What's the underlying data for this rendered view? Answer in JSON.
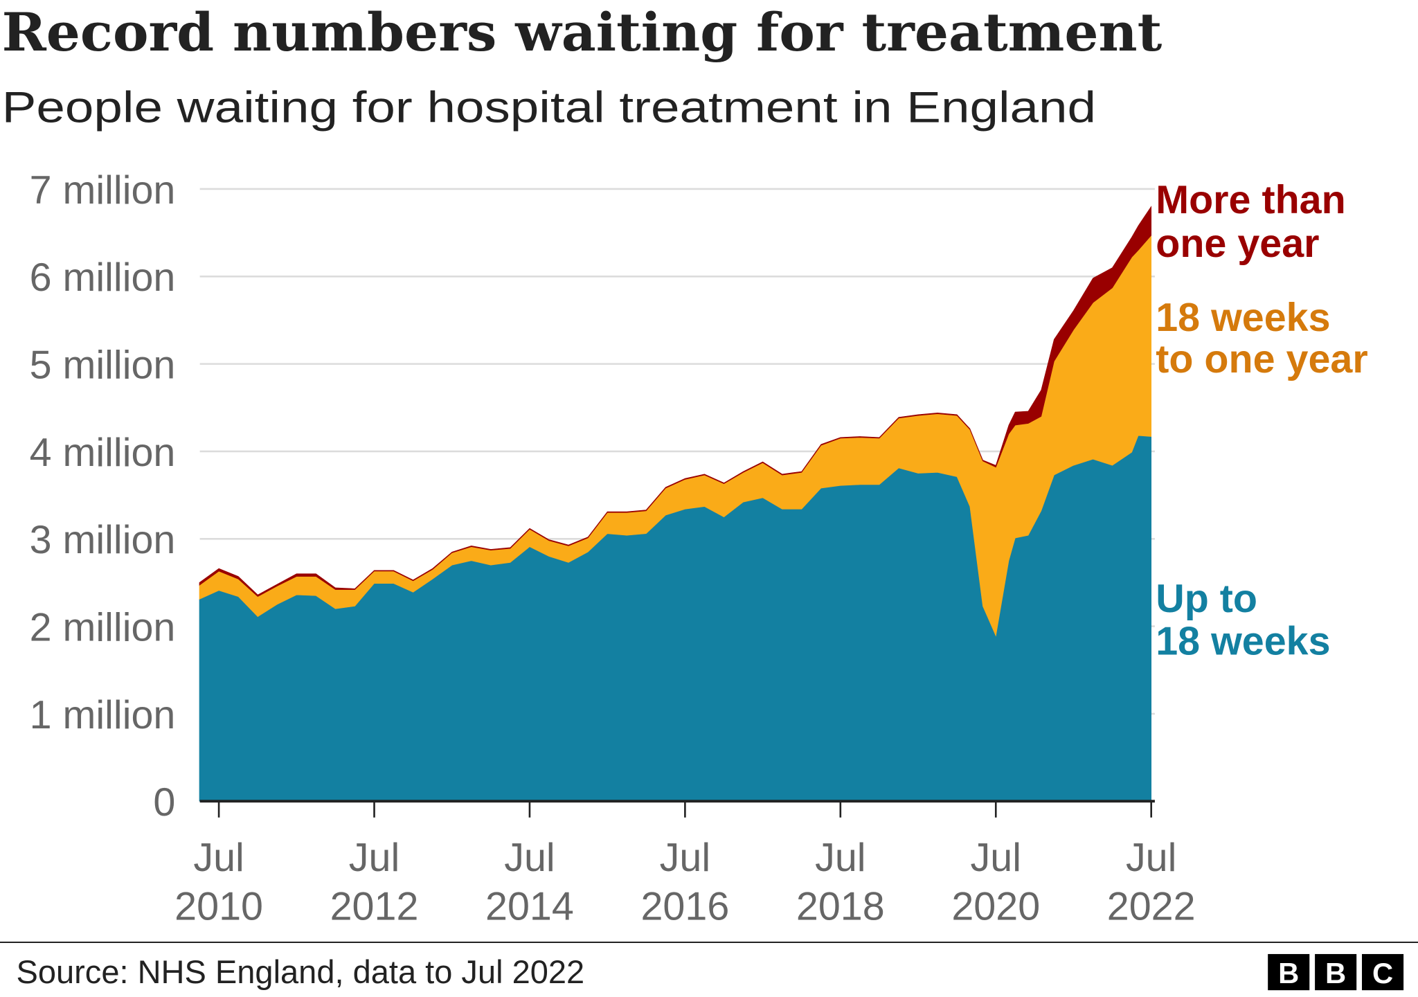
{
  "title": "Record numbers waiting for treatment",
  "subtitle": "People waiting for hospital treatment in England",
  "source": "Source: NHS England, data to Jul 2022",
  "logo": [
    "B",
    "B",
    "C"
  ],
  "colors": {
    "up_to_18_weeks": "#1380A1",
    "18_weeks_to_one_year": "#FAAB18",
    "more_than_one_year": "#990000",
    "label_18_weeks_to_one_year": "#D57A0C"
  },
  "chart_data": {
    "type": "area",
    "stacked": true,
    "title": "Record numbers waiting for treatment",
    "subtitle": "People waiting for hospital treatment in England",
    "ylim": [
      0,
      7
    ],
    "yunit": "million",
    "yticks": [
      "0",
      "1 million",
      "2 million",
      "3 million",
      "4 million",
      "5 million",
      "6 million",
      "7 million"
    ],
    "xticks": [
      {
        "month": "Jul",
        "year": "2010"
      },
      {
        "month": "Jul",
        "year": "2012"
      },
      {
        "month": "Jul",
        "year": "2014"
      },
      {
        "month": "Jul",
        "year": "2016"
      },
      {
        "month": "Jul",
        "year": "2018"
      },
      {
        "month": "Jul",
        "year": "2020"
      },
      {
        "month": "Jul",
        "year": "2022"
      }
    ],
    "grid": true,
    "legend": "direct labels at right",
    "x": [
      "2010-04",
      "2010-07",
      "2010-10",
      "2011-01",
      "2011-04",
      "2011-07",
      "2011-10",
      "2012-01",
      "2012-04",
      "2012-07",
      "2012-10",
      "2013-01",
      "2013-04",
      "2013-07",
      "2013-10",
      "2014-01",
      "2014-04",
      "2014-07",
      "2014-10",
      "2015-01",
      "2015-04",
      "2015-07",
      "2015-10",
      "2016-01",
      "2016-04",
      "2016-07",
      "2016-10",
      "2017-01",
      "2017-04",
      "2017-07",
      "2017-10",
      "2018-01",
      "2018-04",
      "2018-07",
      "2018-10",
      "2019-01",
      "2019-04",
      "2019-07",
      "2019-10",
      "2020-01",
      "2020-03",
      "2020-05",
      "2020-07",
      "2020-09",
      "2020-10",
      "2020-12",
      "2021-02",
      "2021-04",
      "2021-07",
      "2021-10",
      "2022-01",
      "2022-04",
      "2022-05",
      "2022-07"
    ],
    "series": [
      {
        "name": "Up to 18 weeks",
        "label_lines": [
          "Up to",
          "18 weeks"
        ],
        "values": [
          2.31,
          2.41,
          2.34,
          2.11,
          2.25,
          2.36,
          2.35,
          2.2,
          2.23,
          2.49,
          2.49,
          2.39,
          2.54,
          2.7,
          2.75,
          2.7,
          2.73,
          2.91,
          2.8,
          2.73,
          2.85,
          3.06,
          3.04,
          3.06,
          3.27,
          3.34,
          3.37,
          3.25,
          3.42,
          3.47,
          3.34,
          3.34,
          3.58,
          3.61,
          3.62,
          3.62,
          3.81,
          3.75,
          3.76,
          3.71,
          3.37,
          2.23,
          1.89,
          2.75,
          3.01,
          3.04,
          3.32,
          3.73,
          3.84,
          3.91,
          3.84,
          3.99,
          4.18,
          4.17
        ]
      },
      {
        "name": "18 weeks to one year",
        "label_lines": [
          "18 weeks",
          "to one year"
        ],
        "values": [
          0.16,
          0.22,
          0.2,
          0.23,
          0.21,
          0.21,
          0.22,
          0.22,
          0.19,
          0.14,
          0.14,
          0.13,
          0.11,
          0.14,
          0.16,
          0.17,
          0.16,
          0.2,
          0.18,
          0.19,
          0.16,
          0.24,
          0.26,
          0.26,
          0.31,
          0.34,
          0.36,
          0.38,
          0.34,
          0.4,
          0.39,
          0.42,
          0.49,
          0.54,
          0.54,
          0.53,
          0.57,
          0.66,
          0.67,
          0.7,
          0.88,
          1.66,
          1.93,
          1.45,
          1.29,
          1.28,
          1.08,
          1.3,
          1.55,
          1.79,
          2.03,
          2.23,
          2.12,
          2.3
        ]
      },
      {
        "name": "More than one year",
        "label_lines": [
          "More than",
          "one year"
        ],
        "values": [
          0.03,
          0.03,
          0.03,
          0.02,
          0.02,
          0.03,
          0.03,
          0.02,
          0.01,
          0.01,
          0.01,
          0.01,
          0.01,
          0.01,
          0.01,
          0.01,
          0.01,
          0.01,
          0.01,
          0.01,
          0.01,
          0.01,
          0.01,
          0.01,
          0.01,
          0.01,
          0.01,
          0.01,
          0.01,
          0.01,
          0.01,
          0.01,
          0.01,
          0.01,
          0.01,
          0.01,
          0.01,
          0.01,
          0.01,
          0.01,
          0.01,
          0.01,
          0.02,
          0.1,
          0.15,
          0.14,
          0.3,
          0.25,
          0.22,
          0.28,
          0.23,
          0.23,
          0.28,
          0.33
        ]
      }
    ]
  }
}
